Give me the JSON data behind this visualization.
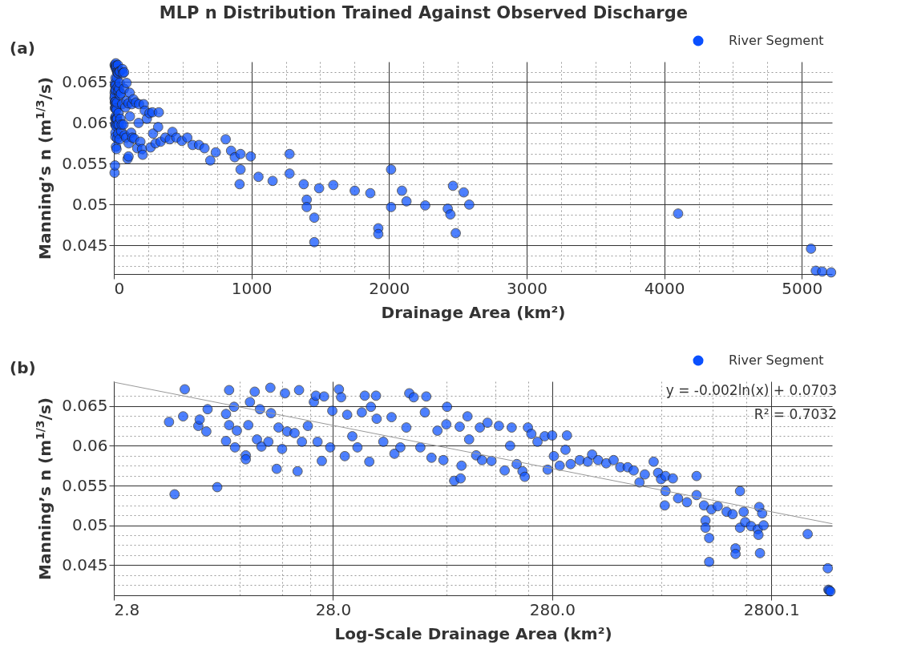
{
  "chart_data": [
    {
      "type": "scatter",
      "title": "MLP n Distribution Trained Against Observed Discharge",
      "xlabel": "Drainage Area (km²)",
      "ylabel": "Manning’s n (m$^{1/3}$/s)",
      "annotations": [
        "(a)"
      ],
      "xlim": [
        0,
        5220
      ],
      "ylim": [
        0.0415,
        0.0675
      ],
      "xticks": [
        0,
        1000,
        2000,
        3000,
        4000,
        5000,
        {
          "value": 250,
          "label": null
        },
        {
          "value": 500,
          "label": null
        },
        {
          "value": 750,
          "label": null
        },
        {
          "value": 1250,
          "label": null
        },
        {
          "value": 1500,
          "label": null
        },
        {
          "value": 1750,
          "label": null
        },
        {
          "value": 2250,
          "label": null
        },
        {
          "value": 2500,
          "label": null
        },
        {
          "value": 2750,
          "label": null
        },
        {
          "value": 3250,
          "label": null
        },
        {
          "value": 3500,
          "label": null
        },
        {
          "value": 3750,
          "label": null
        },
        {
          "value": 4250,
          "label": null
        },
        {
          "value": 4500,
          "label": null
        },
        {
          "value": 4750,
          "label": null
        }
      ],
      "yticks": [
        0.045,
        0.05,
        0.055,
        0.06,
        0.065,
        {
          "value": 0.0425,
          "label": null
        },
        {
          "value": 0.04375,
          "label": null
        },
        {
          "value": 0.04625,
          "label": null
        },
        {
          "value": 0.0475,
          "label": null
        },
        {
          "value": 0.04875,
          "label": null
        },
        {
          "value": 0.05125,
          "label": null
        },
        {
          "value": 0.0525,
          "label": null
        },
        {
          "value": 0.05375,
          "label": null
        },
        {
          "value": 0.05625,
          "label": null
        },
        {
          "value": 0.0575,
          "label": null
        },
        {
          "value": 0.05875,
          "label": null
        },
        {
          "value": 0.06125,
          "label": null
        },
        {
          "value": 0.0625,
          "label": null
        },
        {
          "value": 0.06375,
          "label": null
        },
        {
          "value": 0.06625,
          "label": null
        }
      ],
      "grid": true,
      "legend": "top right",
      "series": [
        {
          "name": "River Segment",
          "color": "#0a50ff",
          "marker": "circle",
          "x": [
            5.0,
            5.3,
            5.9,
            5.8,
            6.8,
            6.9,
            7.4,
            7.5,
            8.3,
            9.1,
            9.1,
            9.4,
            9.4,
            9.9,
            10.0,
            10.2,
            11.2,
            11.2,
            11.5,
            11.7,
            12.3,
            12.6,
            13.0,
            13.2,
            14.2,
            14.5,
            14.6,
            15.5,
            15.8,
            16.4,
            16.9,
            17.3,
            18.7,
            19.3,
            19.6,
            20.2,
            21.5,
            22.9,
            23.4,
            23.8,
            24.9,
            25.5,
            27.2,
            27.8,
            29.8,
            30.5,
            31.7,
            32.5,
            34.3,
            36.2,
            37.9,
            39.1,
            41.0,
            41.7,
            44.0,
            44.3,
            47.5,
            51.8,
            53.4,
            56.8,
            60.5,
            62.4,
            65.4,
            70.1,
            74.6,
            73.5,
            78.8,
            83.9,
            89.3,
            92.1,
            92.8,
            100,
            106,
            107,
            108,
            115,
            117,
            126,
            131,
            134,
            142,
            148,
            160,
            170,
            183,
            193,
            205,
            210,
            217,
            180,
            225,
            240,
            259,
            267,
            280,
            285,
            303,
            327,
            322,
            340,
            374,
            407,
            426,
            454,
            494,
            534,
            573,
            619,
            659,
            701,
            741,
            813,
            852,
            879,
            921,
            995,
            921,
            914,
            1051,
            1154,
            1277,
            1277,
            1380,
            1402,
            1492,
            1402,
            1457,
            1457,
            1595,
            1751,
            1864,
            2015,
            1922,
            1922,
            2015,
            2094,
            2127,
            2263,
            2427,
            2446,
            2465,
            2543,
            2583,
            2485,
            4101,
            5067,
            5102,
            5148,
            5213
          ],
          "values": [
            0.063,
            0.0539,
            0.0671,
            0.0637,
            0.0625,
            0.0633,
            0.0618,
            0.0646,
            0.0548,
            0.0606,
            0.064,
            0.0626,
            0.067,
            0.0649,
            0.0598,
            0.0619,
            0.0588,
            0.0583,
            0.0626,
            0.0655,
            0.0668,
            0.0608,
            0.0646,
            0.0599,
            0.0605,
            0.0673,
            0.0641,
            0.0571,
            0.0623,
            0.0596,
            0.0666,
            0.0618,
            0.0616,
            0.0568,
            0.067,
            0.0605,
            0.0625,
            0.0655,
            0.0663,
            0.0605,
            0.0581,
            0.0662,
            0.0598,
            0.0644,
            0.0671,
            0.0661,
            0.0587,
            0.0639,
            0.0612,
            0.0598,
            0.0642,
            0.0663,
            0.058,
            0.0649,
            0.0663,
            0.0634,
            0.0605,
            0.0636,
            0.059,
            0.0598,
            0.0623,
            0.0666,
            0.0661,
            0.0598,
            0.0662,
            0.0642,
            0.0585,
            0.0619,
            0.0582,
            0.0627,
            0.0649,
            0.0556,
            0.0624,
            0.0559,
            0.0575,
            0.0637,
            0.0608,
            0.0588,
            0.0623,
            0.0582,
            0.0629,
            0.0581,
            0.0625,
            0.0569,
            0.0623,
            0.0577,
            0.0568,
            0.0561,
            0.0623,
            0.06,
            0.0615,
            0.0605,
            0.0612,
            0.057,
            0.0613,
            0.0587,
            0.0575,
            0.0613,
            0.0595,
            0.0577,
            0.0582,
            0.058,
            0.0589,
            0.0582,
            0.0578,
            0.0582,
            0.0573,
            0.0573,
            0.0569,
            0.0554,
            0.0564,
            0.058,
            0.0566,
            0.0558,
            0.0562,
            0.0559,
            0.0543,
            0.0525,
            0.0534,
            0.0529,
            0.0562,
            0.0538,
            0.0525,
            0.0506,
            0.052,
            0.0497,
            0.0484,
            0.0454,
            0.0524,
            0.0517,
            0.0514,
            0.0543,
            0.0471,
            0.0464,
            0.0497,
            0.0517,
            0.0504,
            0.0499,
            0.0495,
            0.0488,
            0.0523,
            0.0515,
            0.05,
            0.0465,
            0.0489,
            0.0446,
            0.0419,
            0.0418,
            0.0417
          ]
        }
      ]
    },
    {
      "type": "scatter",
      "xlabel": "Log-Scale Drainage Area (km²)",
      "ylabel": "Manning’s n (m$^{1/3}$/s)",
      "annotations": [
        "(b)",
        "y = -0.002ln(x) + 0.0703",
        "R² = 0.7032"
      ],
      "log": "x",
      "xlim": [
        2.8,
        5300
      ],
      "ylim": [
        0.0412,
        0.0681
      ],
      "xticks": [
        2.8,
        {
          "value": 28,
          "label": "28.0"
        },
        {
          "value": 280,
          "label": "280.0"
        },
        2800.1,
        {
          "value": 10.5,
          "label": null
        },
        {
          "value": 16.4,
          "label": null
        },
        {
          "value": 22,
          "label": null
        },
        {
          "value": 92,
          "label": null
        },
        {
          "value": 154,
          "label": null
        },
        {
          "value": 218,
          "label": null
        },
        {
          "value": 885,
          "label": null
        },
        {
          "value": 1510,
          "label": null
        },
        {
          "value": 2150,
          "label": null
        }
      ],
      "yticks": [
        0.045,
        0.05,
        0.055,
        0.06,
        0.065,
        {
          "value": 0.0425,
          "label": null
        },
        {
          "value": 0.04375,
          "label": null
        },
        {
          "value": 0.04625,
          "label": null
        },
        {
          "value": 0.0475,
          "label": null
        },
        {
          "value": 0.04875,
          "label": null
        },
        {
          "value": 0.05125,
          "label": null
        },
        {
          "value": 0.0525,
          "label": null
        },
        {
          "value": 0.05375,
          "label": null
        },
        {
          "value": 0.05625,
          "label": null
        },
        {
          "value": 0.0575,
          "label": null
        },
        {
          "value": 0.05875,
          "label": null
        },
        {
          "value": 0.06125,
          "label": null
        },
        {
          "value": 0.0625,
          "label": null
        },
        {
          "value": 0.06375,
          "label": null
        },
        {
          "value": 0.06625,
          "label": null
        }
      ],
      "grid": true,
      "legend": "top right",
      "series": [
        {
          "name": "River Segment",
          "color": "#0a50ff",
          "marker": "circle",
          "x": [
            5.0,
            5.3,
            5.9,
            5.8,
            6.8,
            6.9,
            7.4,
            7.5,
            8.3,
            9.1,
            9.1,
            9.4,
            9.4,
            9.9,
            10.0,
            10.2,
            11.2,
            11.2,
            11.5,
            11.7,
            12.3,
            12.6,
            13.0,
            13.2,
            14.2,
            14.5,
            14.6,
            15.5,
            15.8,
            16.4,
            16.9,
            17.3,
            18.7,
            19.3,
            19.6,
            20.2,
            21.5,
            22.9,
            23.4,
            23.8,
            24.9,
            25.5,
            27.2,
            27.8,
            29.8,
            30.5,
            31.7,
            32.5,
            34.3,
            36.2,
            37.9,
            39.1,
            41.0,
            41.7,
            44.0,
            44.3,
            47.5,
            51.8,
            53.4,
            56.8,
            60.5,
            62.4,
            65.4,
            70.1,
            74.6,
            73.5,
            78.8,
            83.9,
            89.3,
            92.1,
            92.8,
            100,
            106,
            107,
            108,
            115,
            117,
            126,
            131,
            134,
            142,
            148,
            160,
            170,
            183,
            193,
            205,
            210,
            217,
            180,
            225,
            240,
            259,
            267,
            280,
            285,
            303,
            327,
            322,
            340,
            374,
            407,
            426,
            454,
            494,
            534,
            573,
            619,
            659,
            701,
            741,
            813,
            852,
            879,
            921,
            995,
            921,
            914,
            1051,
            1154,
            1277,
            1277,
            1380,
            1402,
            1492,
            1402,
            1457,
            1457,
            1595,
            1751,
            1864,
            2015,
            1922,
            1922,
            2015,
            2094,
            2127,
            2263,
            2427,
            2446,
            2465,
            2543,
            2583,
            2485,
            4101,
            5067,
            5102,
            5148,
            5213
          ],
          "values": [
            0.063,
            0.0539,
            0.0671,
            0.0637,
            0.0625,
            0.0633,
            0.0618,
            0.0646,
            0.0548,
            0.0606,
            0.064,
            0.0626,
            0.067,
            0.0649,
            0.0598,
            0.0619,
            0.0588,
            0.0583,
            0.0626,
            0.0655,
            0.0668,
            0.0608,
            0.0646,
            0.0599,
            0.0605,
            0.0673,
            0.0641,
            0.0571,
            0.0623,
            0.0596,
            0.0666,
            0.0618,
            0.0616,
            0.0568,
            0.067,
            0.0605,
            0.0625,
            0.0655,
            0.0663,
            0.0605,
            0.0581,
            0.0662,
            0.0598,
            0.0644,
            0.0671,
            0.0661,
            0.0587,
            0.0639,
            0.0612,
            0.0598,
            0.0642,
            0.0663,
            0.058,
            0.0649,
            0.0663,
            0.0634,
            0.0605,
            0.0636,
            0.059,
            0.0598,
            0.0623,
            0.0666,
            0.0661,
            0.0598,
            0.0662,
            0.0642,
            0.0585,
            0.0619,
            0.0582,
            0.0627,
            0.0649,
            0.0556,
            0.0624,
            0.0559,
            0.0575,
            0.0637,
            0.0608,
            0.0588,
            0.0623,
            0.0582,
            0.0629,
            0.0581,
            0.0625,
            0.0569,
            0.0623,
            0.0577,
            0.0568,
            0.0561,
            0.0623,
            0.06,
            0.0615,
            0.0605,
            0.0612,
            0.057,
            0.0613,
            0.0587,
            0.0575,
            0.0613,
            0.0595,
            0.0577,
            0.0582,
            0.058,
            0.0589,
            0.0582,
            0.0578,
            0.0582,
            0.0573,
            0.0573,
            0.0569,
            0.0554,
            0.0564,
            0.058,
            0.0566,
            0.0558,
            0.0562,
            0.0559,
            0.0543,
            0.0525,
            0.0534,
            0.0529,
            0.0562,
            0.0538,
            0.0525,
            0.0506,
            0.052,
            0.0497,
            0.0484,
            0.0454,
            0.0524,
            0.0517,
            0.0514,
            0.0543,
            0.0471,
            0.0464,
            0.0497,
            0.0517,
            0.0504,
            0.0499,
            0.0495,
            0.0488,
            0.0523,
            0.0515,
            0.05,
            0.0465,
            0.0489,
            0.0446,
            0.0419,
            0.0418,
            0.0417
          ]
        },
        {
          "type": "line",
          "color": "#999999",
          "x": [
            2.8,
            5300
          ],
          "values": [
            0.068,
            0.0502
          ]
        }
      ]
    }
  ]
}
